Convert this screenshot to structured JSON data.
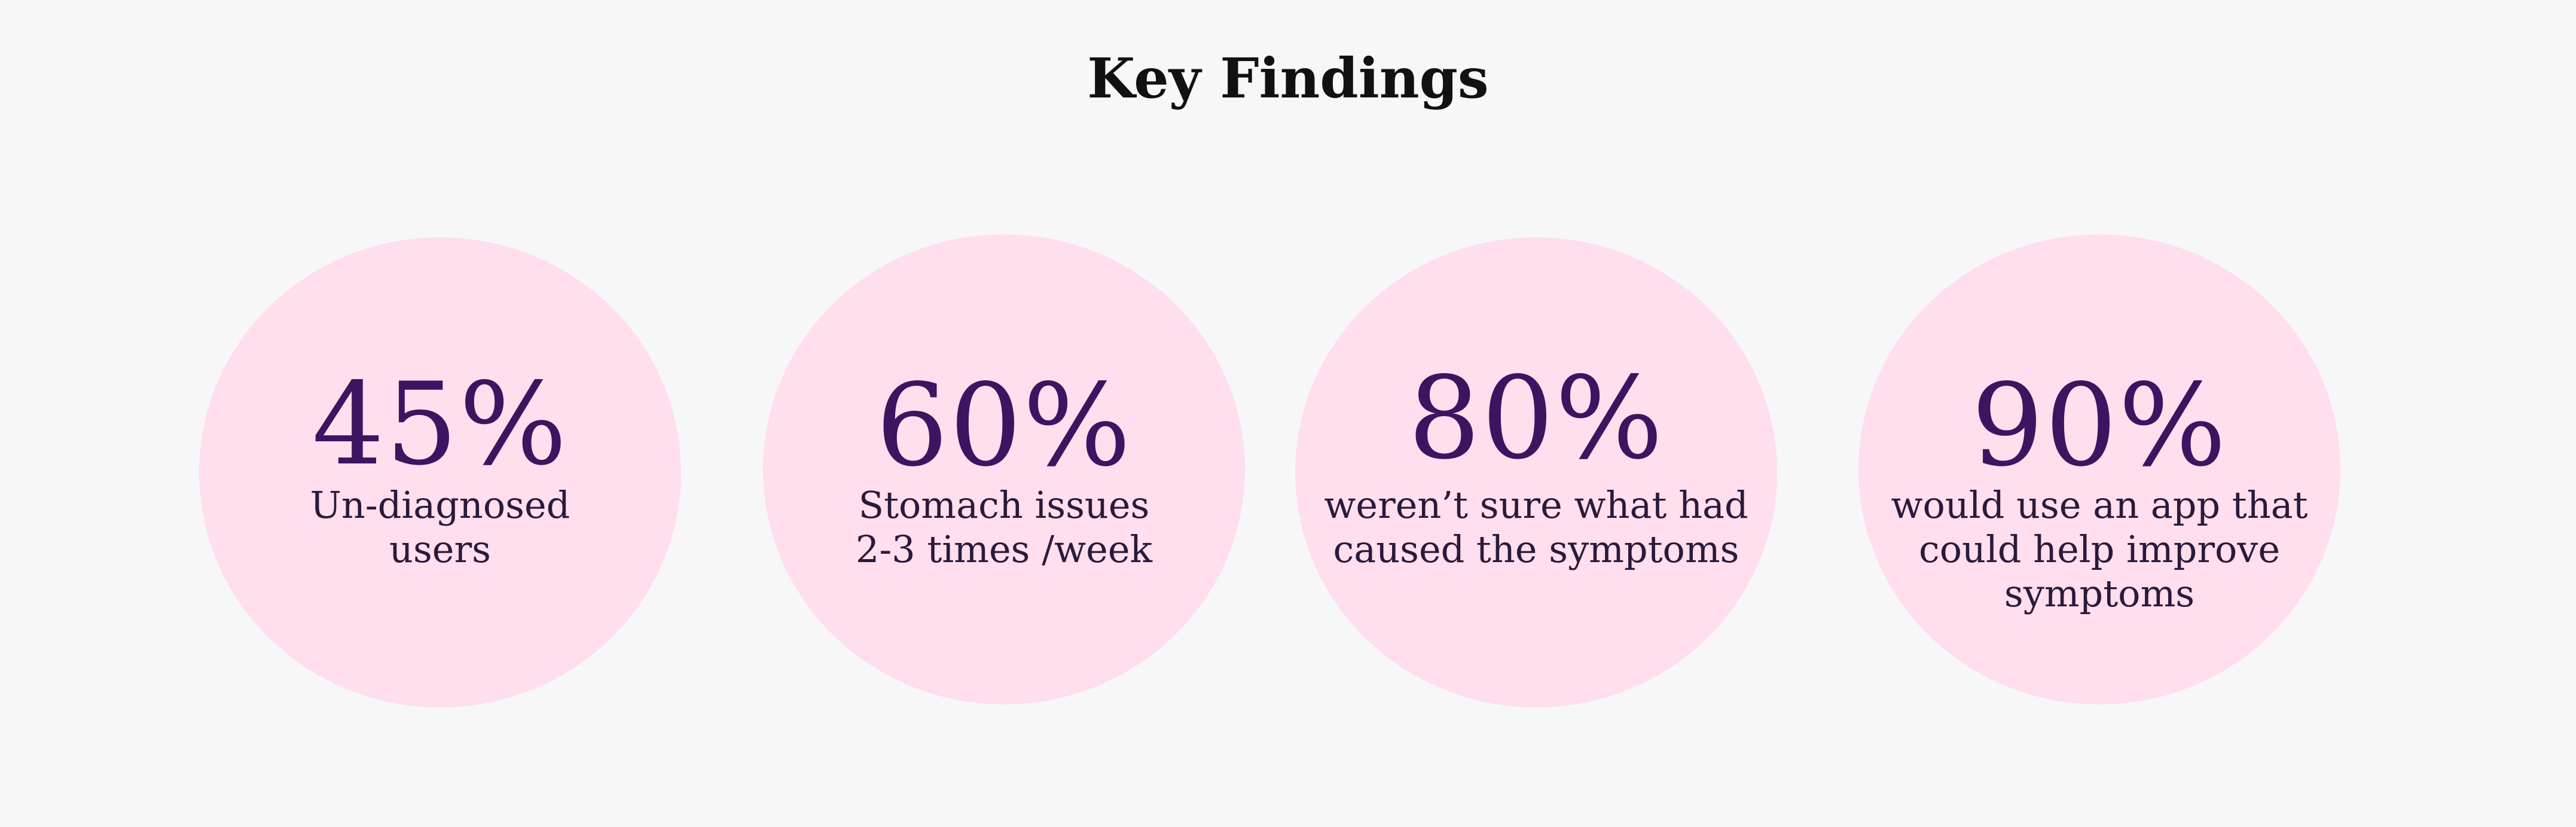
{
  "header": {
    "title": "Key Findings"
  },
  "findings": [
    {
      "value": "45%",
      "label": "Un-diagnosed users"
    },
    {
      "value": "60%",
      "label": "Stomach issues 2-3 times /week"
    },
    {
      "value": "80%",
      "label": "weren’t sure what had caused the symptoms"
    },
    {
      "value": "90%",
      "label": "would use an app that could help improve symptoms"
    }
  ],
  "colors": {
    "background": "#f7f7f7",
    "circle_fill": "#ffdeed",
    "percent_text": "#3c1460",
    "label_text": "#2a1a3a",
    "title_text": "#111111"
  }
}
